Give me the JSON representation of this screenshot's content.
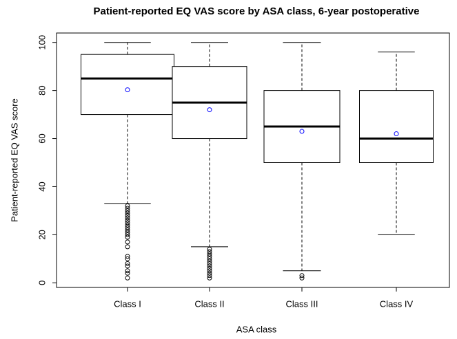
{
  "chart_data": {
    "type": "box",
    "title": "Patient-reported EQ VAS score by ASA class, 6-year postoperative",
    "xlabel": "ASA class",
    "ylabel": "Patient-reported EQ VAS score",
    "categories": [
      "Class I",
      "Class II",
      "Class III",
      "Class IV"
    ],
    "boxes": [
      {
        "whislo": 33,
        "q1": 70,
        "med": 85,
        "q3": 95,
        "whishi": 100,
        "mean": 80.3,
        "outliers": [
          2,
          4,
          5,
          7,
          8,
          10,
          11,
          15,
          17,
          19,
          20,
          21,
          22,
          23,
          24,
          25,
          26,
          27,
          28,
          29,
          30,
          31,
          32
        ]
      },
      {
        "whislo": 15,
        "q1": 60,
        "med": 75,
        "q3": 90,
        "whishi": 100,
        "mean": 72,
        "outliers": [
          2,
          3,
          4,
          5,
          6,
          7,
          8,
          9,
          10,
          11,
          12,
          13,
          14
        ]
      },
      {
        "whislo": 5,
        "q1": 50,
        "med": 65,
        "q3": 80,
        "whishi": 100,
        "mean": 63,
        "outliers": [
          2,
          3
        ]
      },
      {
        "whislo": 20,
        "q1": 50,
        "med": 60,
        "q3": 80,
        "whishi": 96,
        "mean": 62,
        "outliers": []
      }
    ],
    "mean_color": "#0000ff",
    "box_color": "#000000",
    "ylim": [
      -1.92,
      103.92
    ],
    "yticks": [
      0,
      20,
      40,
      60,
      80,
      100
    ]
  }
}
